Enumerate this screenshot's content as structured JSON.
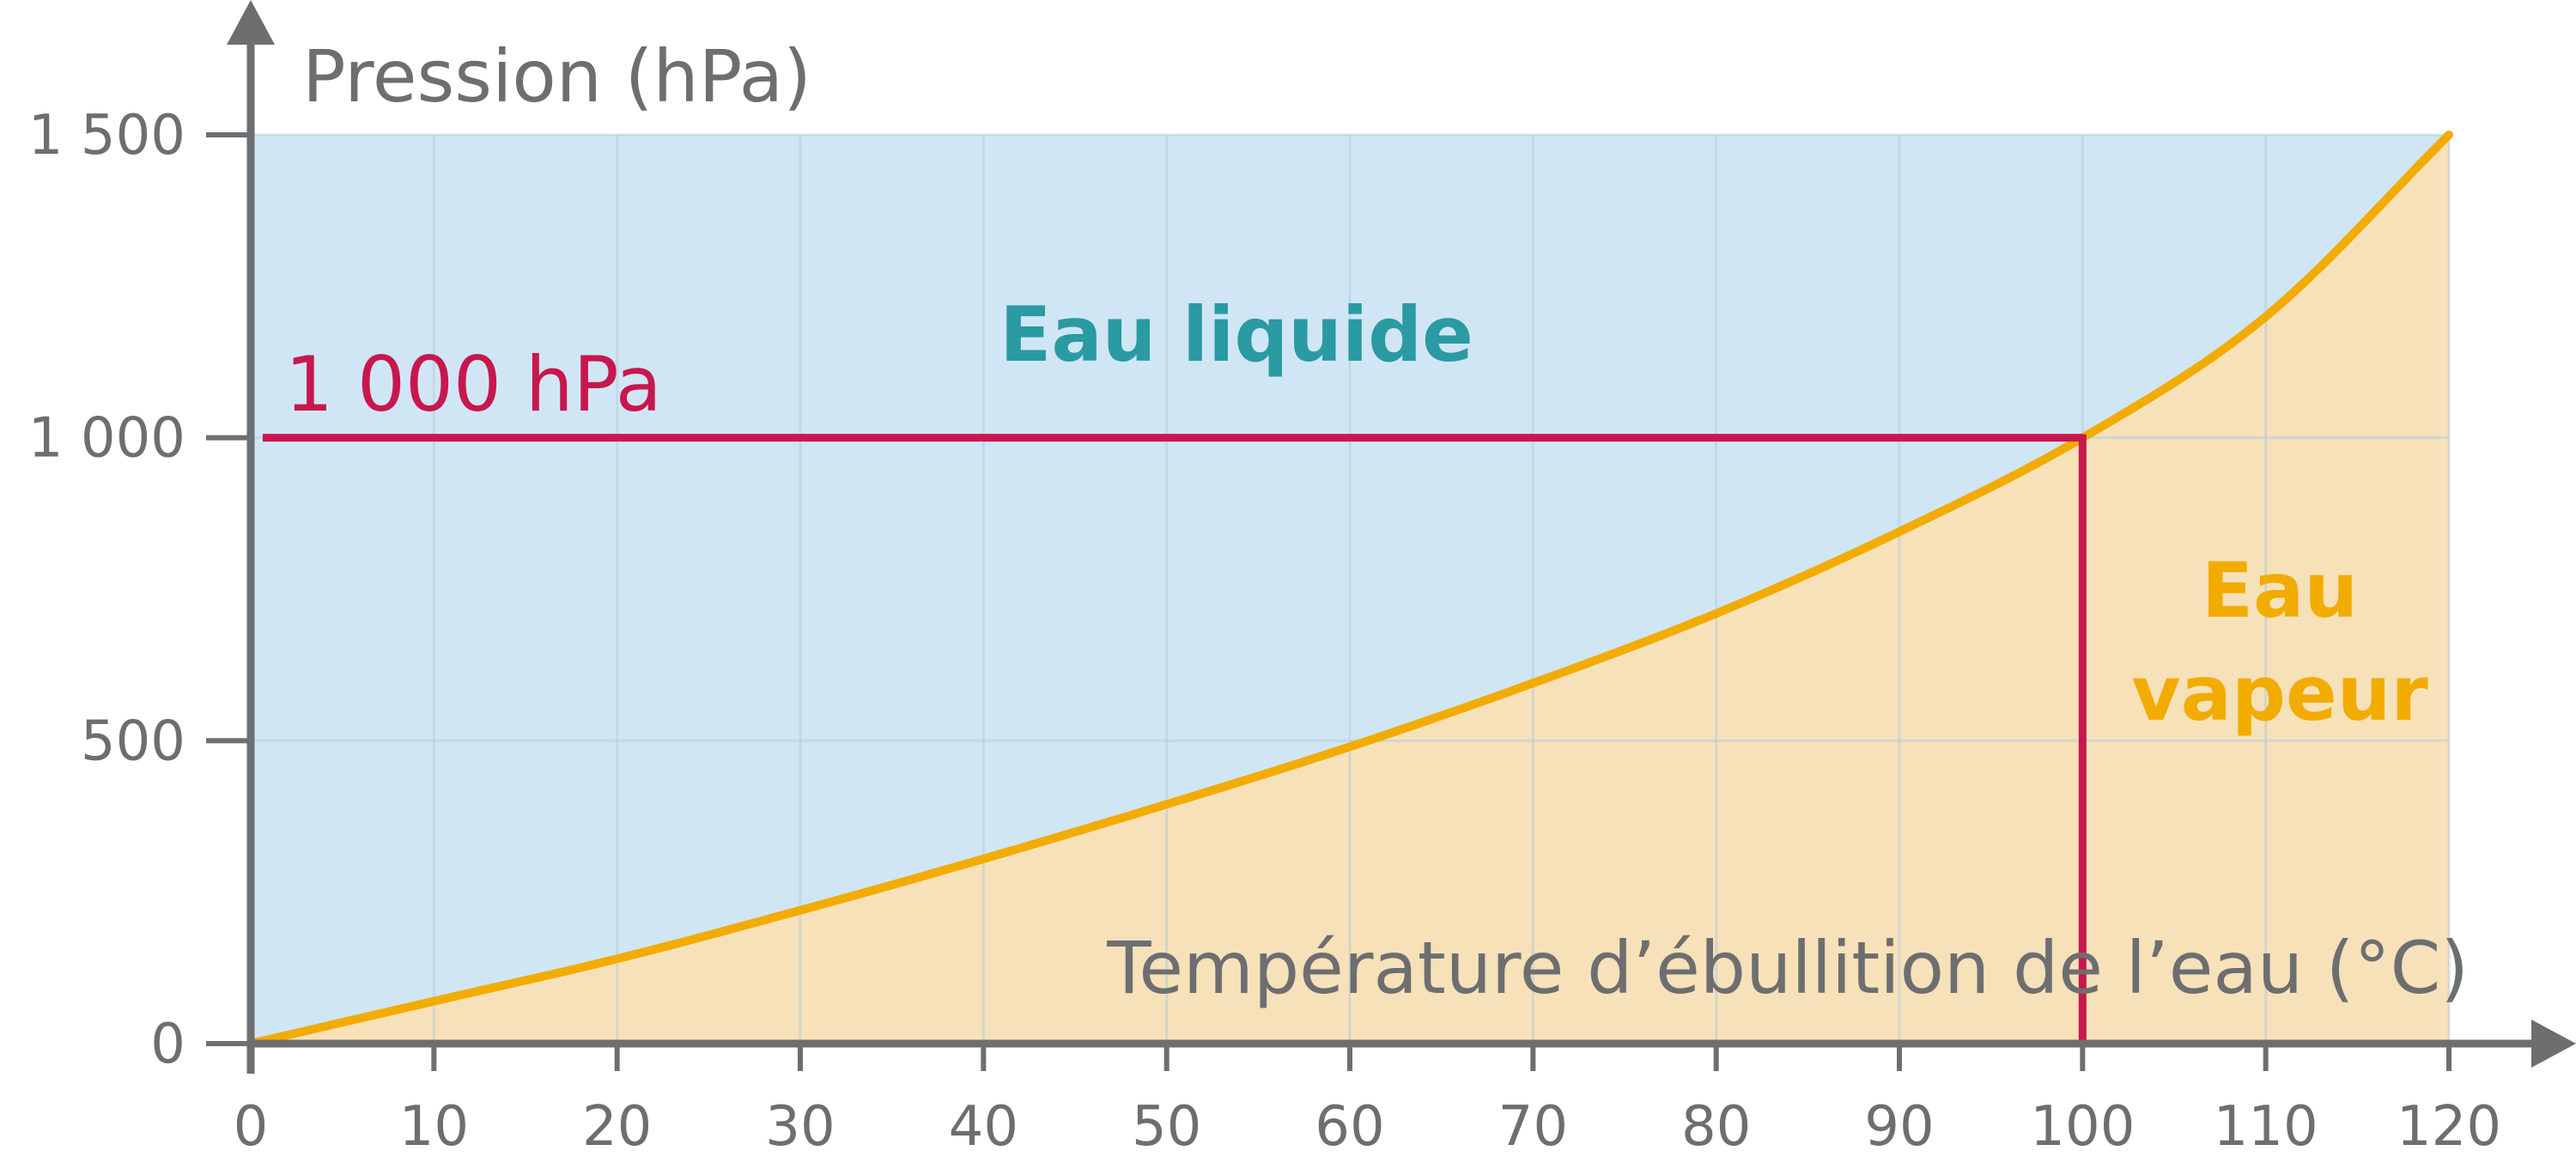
{
  "chart_data": {
    "type": "area",
    "title": "",
    "ylabel": "Pression (hPa)",
    "xlabel": "Température d’ébullition de l’eau (°C)",
    "xlim": [
      0,
      120
    ],
    "ylim": [
      0,
      1500
    ],
    "x_ticks": [
      0,
      10,
      20,
      30,
      40,
      50,
      60,
      70,
      80,
      90,
      100,
      110,
      120
    ],
    "x_tick_labels": [
      "0",
      "10",
      "20",
      "30",
      "40",
      "50",
      "60",
      "70",
      "80",
      "90",
      "100",
      "110",
      "120"
    ],
    "y_ticks": [
      0,
      500,
      1000,
      1500
    ],
    "y_tick_labels": [
      "0",
      "500",
      "1 000",
      "1 500"
    ],
    "grid": true,
    "series": [
      {
        "x": [
          0,
          10,
          20,
          30,
          40,
          50,
          60,
          70,
          80,
          90,
          100,
          110,
          120
        ],
        "y": [
          0,
          70,
          140,
          220,
          305,
          395,
          490,
          595,
          710,
          845,
          1000,
          1200,
          1500
        ]
      }
    ],
    "reference": {
      "x": 100,
      "y": 1000,
      "label": "1 000 hPa"
    },
    "regions": {
      "above": "Eau liquide",
      "below_line1": "Eau",
      "below_line2": "vapeur"
    },
    "colors": {
      "liquid_fill": "#d0e6f5",
      "vapor_fill": "#f7e1b9",
      "curve": "#f2ac00",
      "reference": "#c8174d",
      "axis": "#6d6e70",
      "grid": "#b4cddb",
      "liquid_text": "#2a9aa3",
      "vapor_text": "#f2ac00"
    }
  }
}
